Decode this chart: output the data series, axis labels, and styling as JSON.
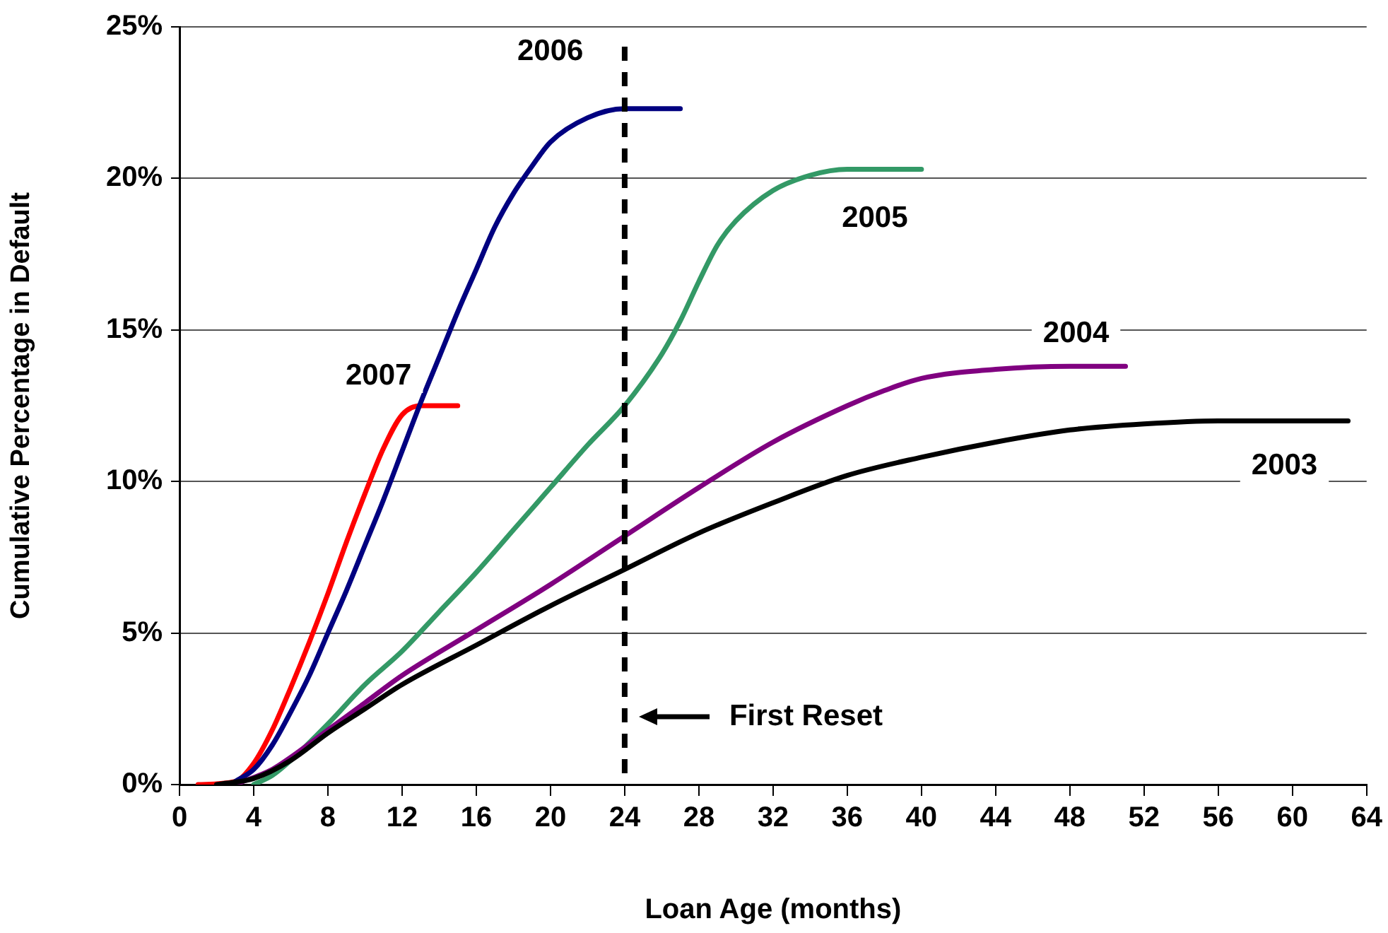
{
  "chart_data": {
    "type": "line",
    "xlabel": "Loan Age (months)",
    "ylabel": "Cumulative Percentage in Default",
    "xlim": [
      0,
      64
    ],
    "xticks": [
      0,
      4,
      8,
      12,
      16,
      20,
      24,
      28,
      32,
      36,
      40,
      44,
      48,
      52,
      56,
      60,
      64
    ],
    "ylim": [
      0,
      25
    ],
    "yticks": [
      {
        "value": 0,
        "label": "0%"
      },
      {
        "value": 5,
        "label": "5%"
      },
      {
        "value": 10,
        "label": "10%"
      },
      {
        "value": 15,
        "label": "15%"
      },
      {
        "value": 20,
        "label": "20%"
      },
      {
        "value": 25,
        "label": "25%"
      }
    ],
    "grid": "y",
    "legend": false,
    "marker": "none",
    "line_style": "solid",
    "series": [
      {
        "name": "2003",
        "color": "#000000",
        "x": [
          2,
          4,
          6,
          8,
          10,
          12,
          16,
          20,
          24,
          28,
          32,
          36,
          40,
          44,
          48,
          52,
          56,
          63
        ],
        "values": [
          0,
          0.2,
          0.8,
          1.7,
          2.5,
          3.3,
          4.6,
          5.9,
          7.1,
          8.3,
          9.3,
          10.2,
          10.8,
          11.3,
          11.7,
          11.9,
          12,
          12
        ]
      },
      {
        "name": "2004",
        "color": "#800080",
        "x": [
          3,
          5,
          6,
          8,
          10,
          12,
          16,
          20,
          24,
          28,
          32,
          36,
          38,
          40,
          44,
          48,
          51
        ],
        "values": [
          0,
          0.5,
          0.9,
          1.8,
          2.7,
          3.6,
          5.1,
          6.6,
          8.2,
          9.8,
          11.3,
          12.5,
          13,
          13.4,
          13.7,
          13.8,
          13.8
        ]
      },
      {
        "name": "2005",
        "color": "#339966",
        "x": [
          4,
          5,
          6,
          8,
          10,
          12,
          14,
          16,
          18,
          20,
          22,
          24,
          26,
          27,
          28,
          29,
          30,
          32,
          34,
          36,
          40
        ],
        "values": [
          0,
          0.3,
          0.8,
          2,
          3.3,
          4.4,
          5.7,
          7,
          8.4,
          9.8,
          11.2,
          12.5,
          14.2,
          15.3,
          16.6,
          17.8,
          18.6,
          19.6,
          20.1,
          20.3,
          20.3
        ]
      },
      {
        "name": "2006",
        "color": "#000080",
        "x": [
          3,
          4,
          5,
          6,
          7,
          8,
          9,
          10,
          11,
          12,
          13,
          14,
          15,
          16,
          17,
          18,
          19,
          20,
          22,
          24,
          27
        ],
        "values": [
          0.1,
          0.5,
          1.3,
          2.4,
          3.6,
          5,
          6.4,
          7.9,
          9.4,
          11,
          12.6,
          14.1,
          15.6,
          17,
          18.4,
          19.5,
          20.4,
          21.2,
          22,
          22.3,
          22.3
        ]
      },
      {
        "name": "2007",
        "color": "#ff0000",
        "x": [
          1,
          3,
          4,
          5,
          6,
          7,
          8,
          9,
          10,
          11,
          12,
          13,
          15
        ],
        "values": [
          0,
          0.1,
          0.7,
          1.8,
          3.2,
          4.7,
          6.3,
          8,
          9.6,
          11.1,
          12.2,
          12.5,
          12.5
        ]
      }
    ],
    "ref_lines": [
      {
        "axis": "x",
        "value": 24,
        "color": "#000000",
        "line_style": "dashed"
      }
    ],
    "annotations": [
      "First Reset"
    ]
  }
}
